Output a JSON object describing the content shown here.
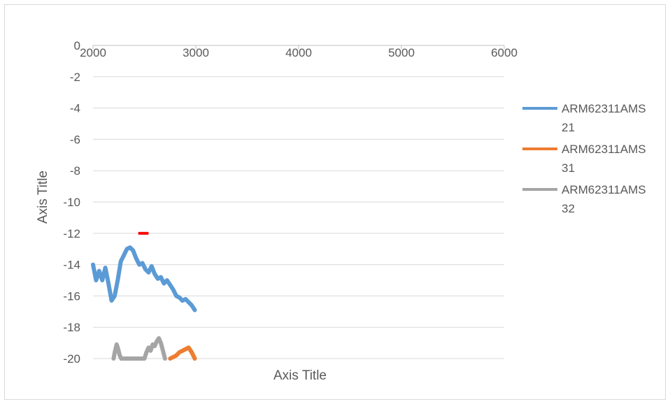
{
  "chart_data": {
    "type": "line",
    "title": "",
    "xlabel": "Axis Title",
    "ylabel": "Axis Title",
    "xlim": [
      2000,
      6000
    ],
    "ylim": [
      -20,
      0
    ],
    "x_ticks": [
      2000,
      3000,
      4000,
      5000,
      6000
    ],
    "y_ticks": [
      0,
      -2,
      -4,
      -6,
      -8,
      -10,
      -12,
      -14,
      -16,
      -18,
      -20
    ],
    "grid": true,
    "legend_position": "right",
    "series": [
      {
        "name": "ARM62311AMS21",
        "color": "#5b9bd5",
        "x": [
          2000,
          2030,
          2060,
          2090,
          2120,
          2150,
          2180,
          2210,
          2240,
          2270,
          2300,
          2330,
          2360,
          2390,
          2420,
          2450,
          2480,
          2510,
          2540,
          2570,
          2600,
          2630,
          2660,
          2690,
          2720,
          2750,
          2780,
          2810,
          2840,
          2870,
          2900,
          2930,
          2960,
          2990
        ],
        "y": [
          -14.0,
          -15.0,
          -14.4,
          -15.0,
          -14.2,
          -15.2,
          -16.3,
          -16.0,
          -15.0,
          -13.8,
          -13.4,
          -13.0,
          -12.9,
          -13.1,
          -13.6,
          -14.0,
          -13.9,
          -14.3,
          -14.5,
          -14.1,
          -14.6,
          -14.9,
          -14.8,
          -15.2,
          -15.0,
          -15.3,
          -15.6,
          -16.0,
          -16.1,
          -16.3,
          -16.2,
          -16.4,
          -16.6,
          -16.9
        ]
      },
      {
        "name": "ARM62311AMS31",
        "color": "#ed7d31",
        "x": [
          2750,
          2780,
          2810,
          2840,
          2870,
          2900,
          2930,
          2960,
          2990
        ],
        "y": [
          -20.0,
          -19.9,
          -19.8,
          -19.6,
          -19.5,
          -19.4,
          -19.3,
          -19.6,
          -20.0
        ]
      },
      {
        "name": "ARM62311AMS32",
        "color": "#a5a5a5",
        "x": [
          2200,
          2215,
          2230,
          2245,
          2260,
          2275,
          2500,
          2520,
          2540,
          2560,
          2580,
          2600,
          2620,
          2640,
          2660,
          2680,
          2700
        ],
        "y": [
          -20.0,
          -19.5,
          -19.1,
          -19.4,
          -19.8,
          -20.0,
          -20.0,
          -19.6,
          -19.3,
          -19.5,
          -19.1,
          -19.2,
          -18.9,
          -18.7,
          -19.0,
          -19.5,
          -20.0
        ]
      }
    ],
    "annotations": [
      {
        "type": "marker",
        "color": "#ff0000",
        "x1": 2440,
        "x2": 2540,
        "y": -12.0
      }
    ]
  }
}
